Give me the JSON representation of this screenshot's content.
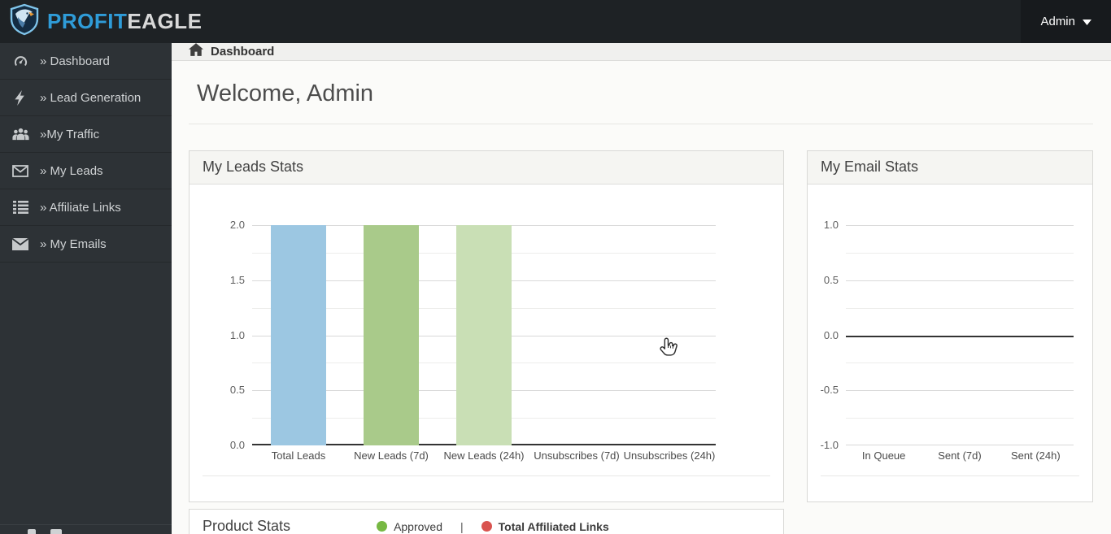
{
  "topbar": {
    "brand_profit": "PROFIT",
    "brand_eagle": "EAGLE",
    "admin_label": "Admin"
  },
  "sidebar": {
    "items": [
      {
        "label": "» Dashboard",
        "icon": "gauge-icon"
      },
      {
        "label": "» Lead Generation",
        "icon": "bolt-icon"
      },
      {
        "label": "»My Traffic",
        "icon": "users-icon"
      },
      {
        "label": "» My Leads",
        "icon": "envelope-open-icon"
      },
      {
        "label": "» Affiliate Links",
        "icon": "list-icon"
      },
      {
        "label": "» My Emails",
        "icon": "envelope-icon"
      }
    ]
  },
  "breadcrumb": {
    "label": "Dashboard"
  },
  "main": {
    "welcome_heading": "Welcome, Admin"
  },
  "panels": {
    "leads": {
      "title": "My Leads Stats"
    },
    "email": {
      "title": "My Email Stats"
    },
    "product": {
      "title": "Product Stats",
      "legend": [
        {
          "label": "Approved",
          "color": "#77b843"
        },
        {
          "label": "Total Affiliated Links",
          "color": "#d9534f"
        }
      ]
    }
  },
  "chart_data": [
    {
      "type": "bar",
      "title": "My Leads Stats",
      "categories": [
        "Total Leads",
        "New Leads (7d)",
        "New Leads (24h)",
        "Unsubscribes (7d)",
        "Unsubscribes (24h)"
      ],
      "values": [
        2,
        2,
        2,
        0,
        0
      ],
      "bar_colors": [
        "#9cc7e2",
        "#a9ca8a",
        "#c9dfb5"
      ],
      "ylim": [
        0,
        2
      ],
      "ytick_labels": [
        "2.0",
        "1.5",
        "1.0",
        "0.5",
        "0.0"
      ],
      "grid": true,
      "legend_position": "none"
    },
    {
      "type": "bar",
      "title": "My Email Stats",
      "categories": [
        "In Queue",
        "Sent (7d)",
        "Sent (24h)"
      ],
      "values": [
        0,
        0,
        0
      ],
      "bar_colors": [],
      "ylim": [
        -1,
        1
      ],
      "ytick_labels": [
        "1.0",
        "0.5",
        "0.0",
        "-0.5",
        "-1.0"
      ],
      "grid": true,
      "legend_position": "none"
    }
  ]
}
